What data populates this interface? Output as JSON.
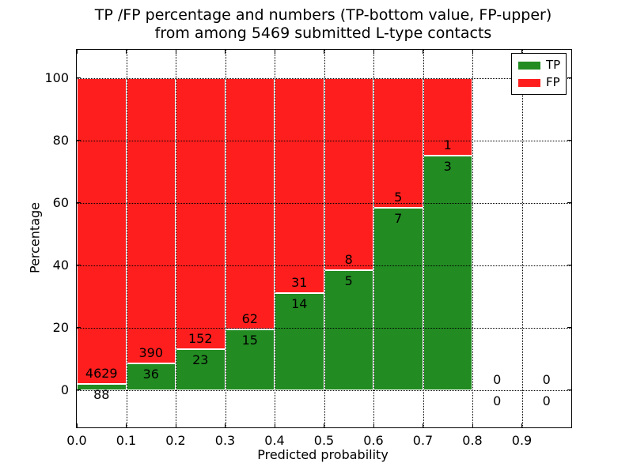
{
  "title": {
    "line1": "TP /FP percentage and numbers (TP-bottom value, FP-upper)",
    "line2": "from among 5469 submitted L-type contacts"
  },
  "chart_data": {
    "type": "bar",
    "stacked": true,
    "title": "TP /FP percentage and numbers (TP-bottom value, FP-upper) from among 5469 submitted L-type contacts",
    "xlabel": "Predicted probability",
    "ylabel": "Percentage",
    "xlim": [
      0.0,
      1.0
    ],
    "ylim": [
      -12,
      109
    ],
    "grid": "dotted",
    "legend_position": "upper right",
    "background": "#ffffff",
    "xticks": [
      "0.0",
      "0.1",
      "0.2",
      "0.3",
      "0.4",
      "0.5",
      "0.6",
      "0.7",
      "0.8",
      "0.9"
    ],
    "yticks": [
      0,
      20,
      40,
      60,
      80,
      100
    ],
    "bin_width": 0.1,
    "total_contacts": 5469,
    "series": [
      {
        "name": "TP",
        "color": "#228b22"
      },
      {
        "name": "FP",
        "color": "#ff1e1e"
      }
    ],
    "bins": [
      {
        "x0": 0.0,
        "x1": 0.1,
        "tp": 88,
        "fp": 4629,
        "tp_pct": 1.87
      },
      {
        "x0": 0.1,
        "x1": 0.2,
        "tp": 36,
        "fp": 390,
        "tp_pct": 8.45
      },
      {
        "x0": 0.2,
        "x1": 0.3,
        "tp": 23,
        "fp": 152,
        "tp_pct": 13.14
      },
      {
        "x0": 0.3,
        "x1": 0.4,
        "tp": 15,
        "fp": 62,
        "tp_pct": 19.48
      },
      {
        "x0": 0.4,
        "x1": 0.5,
        "tp": 14,
        "fp": 31,
        "tp_pct": 31.11
      },
      {
        "x0": 0.5,
        "x1": 0.6,
        "tp": 5,
        "fp": 8,
        "tp_pct": 38.46
      },
      {
        "x0": 0.6,
        "x1": 0.7,
        "tp": 7,
        "fp": 5,
        "tp_pct": 58.33
      },
      {
        "x0": 0.7,
        "x1": 0.8,
        "tp": 3,
        "fp": 1,
        "tp_pct": 75.0
      },
      {
        "x0": 0.8,
        "x1": 0.9,
        "tp": 0,
        "fp": 0,
        "tp_pct": 0
      },
      {
        "x0": 0.9,
        "x1": 1.0,
        "tp": 0,
        "fp": 0,
        "tp_pct": 0
      }
    ]
  }
}
